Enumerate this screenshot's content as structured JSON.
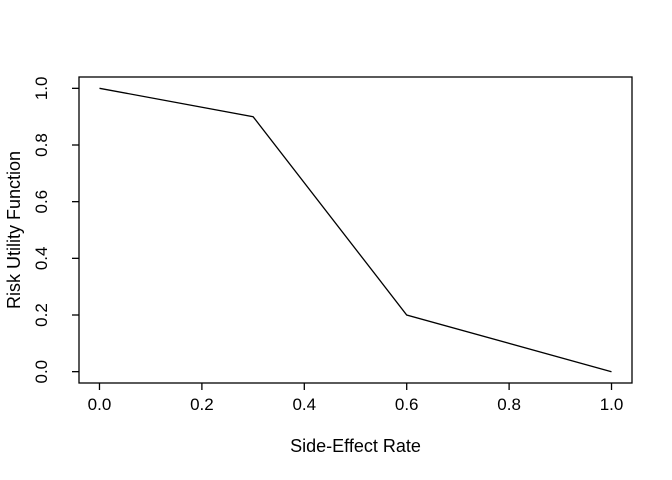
{
  "figure": {
    "background": "#ffffff",
    "line_color": "#000000",
    "axis_color": "#000000",
    "text_color": "#000000"
  },
  "chart_data": {
    "type": "line",
    "title": "",
    "xlabel": "Side-Effect Rate",
    "ylabel": "Risk Utility Function",
    "x": [
      0.0,
      0.3,
      0.6,
      1.0
    ],
    "y": [
      1.0,
      0.9,
      0.2,
      0.0
    ],
    "series": [
      {
        "name": "risk-utility-function",
        "x": [
          0.0,
          0.3,
          0.6,
          1.0
        ],
        "y": [
          1.0,
          0.9,
          0.2,
          0.0
        ]
      }
    ],
    "xlim": [
      0,
      1
    ],
    "ylim": [
      0,
      1
    ],
    "x_ticks": [
      0.0,
      0.2,
      0.4,
      0.6,
      0.8,
      1.0
    ],
    "x_tick_labels": [
      "0.0",
      "0.2",
      "0.4",
      "0.6",
      "0.8",
      "1.0"
    ],
    "y_ticks": [
      0.0,
      0.2,
      0.4,
      0.6,
      0.8,
      1.0
    ],
    "y_tick_labels": [
      "0.0",
      "0.2",
      "0.4",
      "0.6",
      "0.8",
      "1.0"
    ],
    "grid": false,
    "legend": null,
    "plot_style": "r-base-plot"
  }
}
